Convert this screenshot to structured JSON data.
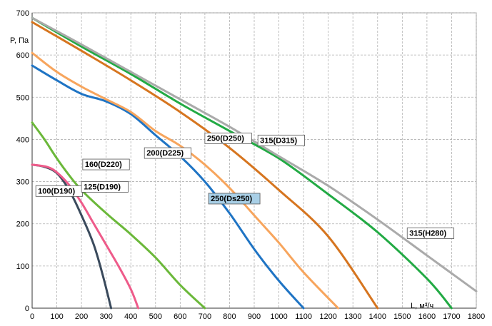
{
  "chart_data": {
    "type": "line",
    "ylabel": "P, Па",
    "xlabel": "L, м³/ч",
    "xlim": [
      0,
      1800
    ],
    "ylim": [
      0,
      700
    ],
    "xticks": [
      "0",
      "100",
      "200",
      "300",
      "400",
      "500",
      "600",
      "700",
      "800",
      "900",
      "1000",
      "1100",
      "1200",
      "1300",
      "1400",
      "1500",
      "1600",
      "1700",
      "1800"
    ],
    "yticks": [
      "0",
      "100",
      "200",
      "300",
      "400",
      "500",
      "600",
      "700"
    ],
    "grid": true,
    "series": [
      {
        "name": "100(D190)",
        "color": "#3a4a5c",
        "label_at": [
          15,
          270
        ],
        "points": [
          [
            0,
            340
          ],
          [
            50,
            335
          ],
          [
            100,
            320
          ],
          [
            150,
            280
          ],
          [
            200,
            220
          ],
          [
            250,
            150
          ],
          [
            290,
            70
          ],
          [
            320,
            0
          ]
        ]
      },
      {
        "name": "125(D190)",
        "color": "#ee5b8a",
        "label_at": [
          200,
          280
        ],
        "points": [
          [
            0,
            340
          ],
          [
            60,
            335
          ],
          [
            100,
            322
          ],
          [
            150,
            292
          ],
          [
            200,
            250
          ],
          [
            250,
            200
          ],
          [
            300,
            150
          ],
          [
            350,
            100
          ],
          [
            400,
            45
          ],
          [
            430,
            0
          ]
        ]
      },
      {
        "name": "160(D220)",
        "color": "#6bb83a",
        "label_at": [
          205,
          333
        ],
        "points": [
          [
            0,
            440
          ],
          [
            50,
            400
          ],
          [
            100,
            355
          ],
          [
            150,
            315
          ],
          [
            200,
            280
          ],
          [
            300,
            225
          ],
          [
            400,
            175
          ],
          [
            500,
            120
          ],
          [
            600,
            55
          ],
          [
            700,
            0
          ]
        ]
      },
      {
        "name": "200(D225)",
        "color": "#1f74c4",
        "label_at": [
          455,
          360
        ],
        "points": [
          [
            0,
            575
          ],
          [
            100,
            540
          ],
          [
            200,
            508
          ],
          [
            300,
            490
          ],
          [
            400,
            460
          ],
          [
            500,
            410
          ],
          [
            600,
            360
          ],
          [
            700,
            300
          ],
          [
            800,
            225
          ],
          [
            900,
            140
          ],
          [
            1000,
            65
          ],
          [
            1100,
            0
          ]
        ]
      },
      {
        "name": "250(Ds250)",
        "color": "#f7a55d",
        "label_at": [
          715,
          252
        ],
        "points": [
          [
            0,
            605
          ],
          [
            100,
            560
          ],
          [
            200,
            525
          ],
          [
            300,
            495
          ],
          [
            400,
            465
          ],
          [
            500,
            420
          ],
          [
            600,
            385
          ],
          [
            700,
            340
          ],
          [
            800,
            285
          ],
          [
            900,
            220
          ],
          [
            1000,
            155
          ],
          [
            1100,
            85
          ],
          [
            1240,
            0
          ]
        ]
      },
      {
        "name": "250(D250)",
        "color": "#d6751f",
        "label_at": [
          700,
          395
        ],
        "points": [
          [
            0,
            678
          ],
          [
            200,
            610
          ],
          [
            400,
            540
          ],
          [
            600,
            465
          ],
          [
            800,
            380
          ],
          [
            1000,
            280
          ],
          [
            1200,
            170
          ],
          [
            1400,
            0
          ]
        ]
      },
      {
        "name": "315(D315)",
        "color": "#22aa44",
        "label_at": [
          915,
          390
        ],
        "points": [
          [
            0,
            688
          ],
          [
            200,
            620
          ],
          [
            400,
            555
          ],
          [
            600,
            485
          ],
          [
            800,
            420
          ],
          [
            1000,
            355
          ],
          [
            1200,
            270
          ],
          [
            1400,
            180
          ],
          [
            1600,
            70
          ],
          [
            1700,
            0
          ]
        ]
      },
      {
        "name": "315(H280)",
        "color": "#aaaaaa",
        "label_at": [
          1520,
          170
        ],
        "points": [
          [
            0,
            688
          ],
          [
            200,
            625
          ],
          [
            400,
            560
          ],
          [
            600,
            495
          ],
          [
            800,
            430
          ],
          [
            1000,
            360
          ],
          [
            1200,
            290
          ],
          [
            1400,
            210
          ],
          [
            1600,
            125
          ],
          [
            1800,
            40
          ]
        ]
      }
    ]
  }
}
